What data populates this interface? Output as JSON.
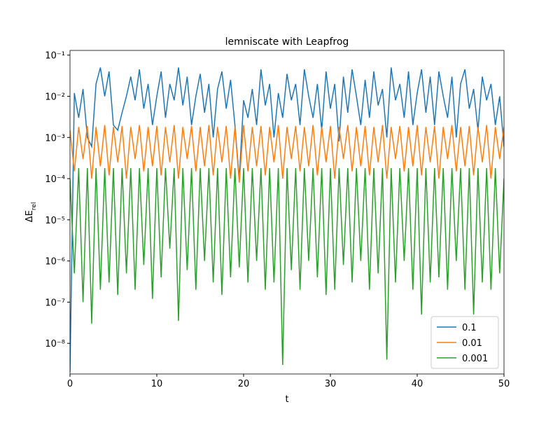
{
  "chart_data": {
    "type": "line",
    "title": "lemniscate with Leapfrog",
    "xlabel": "t",
    "ylabel": {
      "text": "ΔE",
      "subscript": "rel"
    },
    "log_y": true,
    "legend": "lower right",
    "xlim": [
      0,
      50
    ],
    "xticks": [
      0,
      10,
      20,
      30,
      40,
      50
    ],
    "ylim": [
      1.8e-09,
      0.13
    ],
    "yticks": [
      {
        "value": 1e-08,
        "label": "10⁻⁸"
      },
      {
        "value": 1e-07,
        "label": "10⁻⁷"
      },
      {
        "value": 1e-06,
        "label": "10⁻⁶"
      },
      {
        "value": 1e-05,
        "label": "10⁻⁵"
      },
      {
        "value": 0.0001,
        "label": "10⁻⁴"
      },
      {
        "value": 0.001,
        "label": "10⁻³"
      },
      {
        "value": 0.01,
        "label": "10⁻²"
      },
      {
        "value": 0.1,
        "label": "10⁻¹"
      }
    ],
    "x": [
      0,
      0.5,
      1,
      1.5,
      2,
      2.5,
      3,
      3.5,
      4,
      4.5,
      5,
      5.5,
      6,
      6.5,
      7,
      7.5,
      8,
      8.5,
      9,
      9.5,
      10,
      10.5,
      11,
      11.5,
      12,
      12.5,
      13,
      13.5,
      14,
      14.5,
      15,
      15.5,
      16,
      16.5,
      17,
      17.5,
      18,
      18.5,
      19,
      19.5,
      20,
      20.5,
      21,
      21.5,
      22,
      22.5,
      23,
      23.5,
      24,
      24.5,
      25,
      25.5,
      26,
      26.5,
      27,
      27.5,
      28,
      28.5,
      29,
      29.5,
      30,
      30.5,
      31,
      31.5,
      32,
      32.5,
      33,
      33.5,
      34,
      34.5,
      35,
      35.5,
      36,
      36.5,
      37,
      37.5,
      38,
      38.5,
      39,
      39.5,
      40,
      40.5,
      41,
      41.5,
      42,
      42.5,
      43,
      43.5,
      44,
      44.5,
      45,
      45.5,
      46,
      46.5,
      47,
      47.5,
      48,
      48.5,
      49,
      49.5,
      50
    ],
    "series": [
      {
        "name": "0.1",
        "color": "#1f77b4",
        "values": [
          2e-09,
          0.012,
          0.003,
          0.015,
          0.001,
          0.0006,
          0.02,
          0.05,
          0.01,
          0.04,
          0.002,
          0.0015,
          0.004,
          0.01,
          0.03,
          0.008,
          0.045,
          0.005,
          0.02,
          0.002,
          0.01,
          0.04,
          0.003,
          0.02,
          0.008,
          0.05,
          0.006,
          0.03,
          0.002,
          0.01,
          0.035,
          0.004,
          0.02,
          0.001,
          0.015,
          0.04,
          0.005,
          0.025,
          0.002,
          0.0001,
          0.008,
          0.003,
          0.015,
          0.002,
          0.045,
          0.006,
          0.02,
          0.001,
          0.012,
          0.003,
          0.035,
          0.008,
          0.02,
          0.002,
          0.045,
          0.01,
          0.003,
          0.02,
          0.0015,
          0.04,
          0.005,
          0.02,
          0.0008,
          0.03,
          0.004,
          0.045,
          0.01,
          0.002,
          0.025,
          0.003,
          0.04,
          0.006,
          0.015,
          0.001,
          0.05,
          0.008,
          0.02,
          0.003,
          0.04,
          0.002,
          0.012,
          0.045,
          0.004,
          0.03,
          0.002,
          0.04,
          0.01,
          0.003,
          0.03,
          0.001,
          0.02,
          0.045,
          0.005,
          0.015,
          0.0015,
          0.03,
          0.008,
          0.02,
          0.002,
          0.01,
          0.0006
        ]
      },
      {
        "name": "0.01",
        "color": "#ff7f0e",
        "values": [
          0.0015,
          0.00015,
          0.0018,
          0.0003,
          0.0019,
          0.0001,
          0.0018,
          0.0002,
          0.002,
          0.00012,
          0.0018,
          0.00025,
          0.0019,
          0.0001,
          0.0018,
          0.0003,
          0.002,
          0.00015,
          0.0018,
          0.0002,
          0.0019,
          0.00012,
          0.0018,
          0.00025,
          0.002,
          0.0001,
          0.0018,
          0.0003,
          0.0019,
          0.00015,
          0.0018,
          0.0002,
          0.002,
          0.00012,
          0.0018,
          0.00025,
          0.0019,
          0.0001,
          0.0018,
          8e-05,
          0.002,
          0.00015,
          0.0018,
          0.0002,
          0.0019,
          0.00012,
          0.0018,
          0.00025,
          0.002,
          0.0001,
          0.0018,
          0.0003,
          0.0019,
          0.00015,
          0.0018,
          0.0002,
          0.002,
          0.00012,
          0.0018,
          0.00025,
          0.0019,
          0.0001,
          0.0018,
          0.0003,
          0.002,
          0.00015,
          0.0018,
          0.0002,
          0.0019,
          0.00012,
          0.0018,
          0.00025,
          0.002,
          0.0001,
          0.0018,
          0.0003,
          0.0019,
          0.00015,
          0.0018,
          0.0002,
          0.002,
          0.00012,
          0.0018,
          0.00025,
          0.0019,
          0.0001,
          0.0018,
          0.0003,
          0.002,
          0.00015,
          0.0018,
          0.0002,
          0.0019,
          0.00012,
          0.0018,
          0.00025,
          0.002,
          0.0001,
          0.0018,
          0.0003,
          0.0018
        ]
      },
      {
        "name": "0.001",
        "color": "#2ca02c",
        "values": [
          0.0001,
          5e-07,
          0.00018,
          1e-07,
          0.00018,
          3e-08,
          0.00018,
          2e-07,
          0.00018,
          3e-07,
          0.00018,
          1.5e-07,
          0.00018,
          5e-07,
          0.00018,
          2e-07,
          0.00018,
          8e-07,
          0.00018,
          1.2e-07,
          0.00018,
          4e-07,
          0.00018,
          2e-06,
          0.00018,
          3.5e-08,
          0.00018,
          6e-07,
          0.00018,
          2e-07,
          0.00018,
          1e-06,
          0.00018,
          3e-07,
          0.00018,
          1.5e-07,
          0.00018,
          4e-07,
          0.00018,
          7e-07,
          0.00018,
          3e-07,
          0.00018,
          1e-06,
          0.00018,
          2e-07,
          0.00018,
          3e-07,
          0.00018,
          3e-09,
          0.00018,
          6e-07,
          0.00018,
          2e-07,
          0.00018,
          1e-06,
          0.00018,
          4e-07,
          0.00018,
          1.5e-07,
          0.00018,
          2e-07,
          0.00018,
          8e-07,
          0.00018,
          3e-07,
          0.00018,
          1e-06,
          0.00018,
          2e-07,
          0.00018,
          5e-07,
          0.00018,
          4e-09,
          0.00018,
          3e-07,
          0.00018,
          1e-06,
          0.00018,
          2e-07,
          0.00018,
          5e-08,
          0.00018,
          3e-07,
          0.00018,
          4e-07,
          0.00018,
          2e-07,
          0.00018,
          1e-06,
          0.00018,
          2e-07,
          0.00018,
          5e-08,
          0.00018,
          3e-07,
          0.00018,
          2e-07,
          0.00018,
          5e-07,
          0.0001
        ]
      }
    ]
  }
}
